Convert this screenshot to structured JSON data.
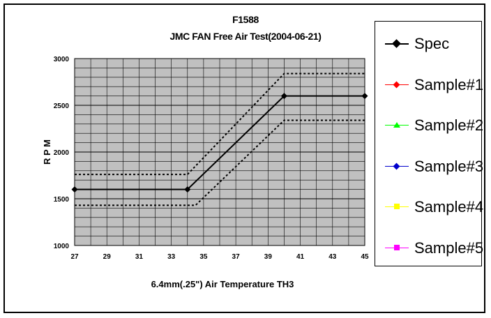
{
  "chart_data": {
    "type": "line",
    "title": "F1588",
    "subtitle": "JMC FAN Free Air Test(2004-06-21)",
    "xlabel": "6.4mm(.25\") Air Temperature TH3",
    "ylabel": "R P M",
    "xlim": [
      27,
      45
    ],
    "ylim": [
      1000,
      3000
    ],
    "x_ticks": [
      "27",
      "29",
      "31",
      "33",
      "35",
      "37",
      "39",
      "41",
      "43",
      "45"
    ],
    "y_ticks": [
      "1000",
      "1500",
      "2000",
      "2500",
      "3000"
    ],
    "grid": true,
    "plot_background": "#c0c0c0",
    "legend_position": "right",
    "series": [
      {
        "name": "Spec",
        "color": "#000000",
        "style": "solid",
        "marker": "diamond",
        "x": [
          27,
          34,
          40,
          45
        ],
        "y": [
          1600,
          1600,
          2600,
          2600
        ]
      },
      {
        "color": "#000000",
        "style": "dotted",
        "x": [
          27,
          34,
          40,
          45
        ],
        "y": [
          1760,
          1760,
          2840,
          2840
        ]
      },
      {
        "color": "#000000",
        "style": "dotted",
        "x": [
          27,
          34.5,
          40,
          45
        ],
        "y": [
          1430,
          1430,
          2340,
          2340
        ]
      },
      {
        "name": "Sample#1",
        "color": "#ff0000",
        "marker": "diamond",
        "x": [],
        "y": []
      },
      {
        "name": "Sample#2",
        "color": "#00ff00",
        "marker": "triangle",
        "x": [],
        "y": []
      },
      {
        "name": "Sample#3",
        "color": "#0000cc",
        "marker": "diamond",
        "x": [],
        "y": []
      },
      {
        "name": "Sample#4",
        "color": "#ffff00",
        "marker": "square",
        "x": [],
        "y": []
      },
      {
        "name": "Sample#5",
        "color": "#ff00ff",
        "marker": "square",
        "x": [],
        "y": []
      }
    ]
  }
}
